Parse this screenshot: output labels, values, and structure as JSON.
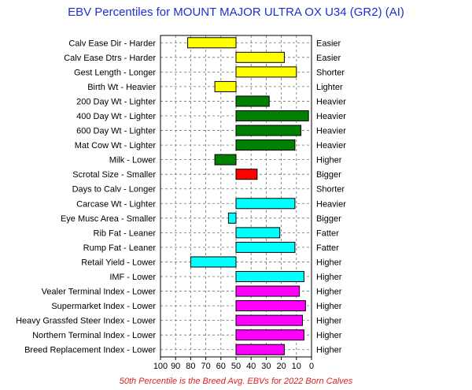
{
  "chart_data": {
    "type": "bar",
    "title": "EBV Percentiles for MOUNT MAJOR ULTRA OX U34 (GR2) (AI)",
    "footnote": "50th Percentile is the Breed Avg. EBVs for 2022 Born Calves",
    "xlim": [
      100,
      0
    ],
    "xticks": [
      "100",
      "90",
      "80",
      "70",
      "60",
      "50",
      "40",
      "30",
      "20",
      "10",
      "0"
    ],
    "baseline": 50,
    "grid": true,
    "colors": {
      "calving": "#ffff00",
      "growth": "#008000",
      "fertility": "#ff0000",
      "carcase": "#00ffff",
      "index": "#ff00ff"
    },
    "traits": [
      {
        "left": "Calv Ease Dir - Harder",
        "right": "Easier",
        "value": 82,
        "group": "calving"
      },
      {
        "left": "Calv Ease Dtrs - Harder",
        "right": "Easier",
        "value": 18,
        "group": "calving"
      },
      {
        "left": "Gest Length - Longer",
        "right": "Shorter",
        "value": 10,
        "group": "calving"
      },
      {
        "left": "Birth Wt - Heavier",
        "right": "Lighter",
        "value": 64,
        "group": "calving"
      },
      {
        "left": "200 Day Wt - Lighter",
        "right": "Heavier",
        "value": 28,
        "group": "growth"
      },
      {
        "left": "400 Day Wt - Lighter",
        "right": "Heavier",
        "value": 2,
        "group": "growth"
      },
      {
        "left": "600 Day Wt - Lighter",
        "right": "Heavier",
        "value": 7,
        "group": "growth"
      },
      {
        "left": "Mat Cow Wt - Lighter",
        "right": "Heavier",
        "value": 11,
        "group": "growth"
      },
      {
        "left": "Milk - Lower",
        "right": "Higher",
        "value": 64,
        "group": "growth"
      },
      {
        "left": "Scrotal Size - Smaller",
        "right": "Bigger",
        "value": 36,
        "group": "fertility"
      },
      {
        "left": "Days to Calv - Longer",
        "right": "Shorter",
        "value": null,
        "group": "fertility"
      },
      {
        "left": "Carcase Wt - Lighter",
        "right": "Heavier",
        "value": 11,
        "group": "carcase"
      },
      {
        "left": "Eye Musc Area - Smaller",
        "right": "Bigger",
        "value": 55,
        "group": "carcase"
      },
      {
        "left": "Rib Fat - Leaner",
        "right": "Fatter",
        "value": 21,
        "group": "carcase"
      },
      {
        "left": "Rump Fat - Leaner",
        "right": "Fatter",
        "value": 11,
        "group": "carcase"
      },
      {
        "left": "Retail Yield - Lower",
        "right": "Higher",
        "value": 80,
        "group": "carcase"
      },
      {
        "left": "IMF - Lower",
        "right": "Higher",
        "value": 5,
        "group": "carcase"
      },
      {
        "left": "Vealer Terminal Index - Lower",
        "right": "Higher",
        "value": 8,
        "group": "index"
      },
      {
        "left": "Supermarket Index - Lower",
        "right": "Higher",
        "value": 4,
        "group": "index"
      },
      {
        "left": "Heavy Grassfed Steer Index - Lower",
        "right": "Higher",
        "value": 6,
        "group": "index"
      },
      {
        "left": "Northern Terminal Index - Lower",
        "right": "Higher",
        "value": 5,
        "group": "index"
      },
      {
        "left": "Breed Replacement Index - Lower",
        "right": "Higher",
        "value": 18,
        "group": "index"
      }
    ]
  }
}
